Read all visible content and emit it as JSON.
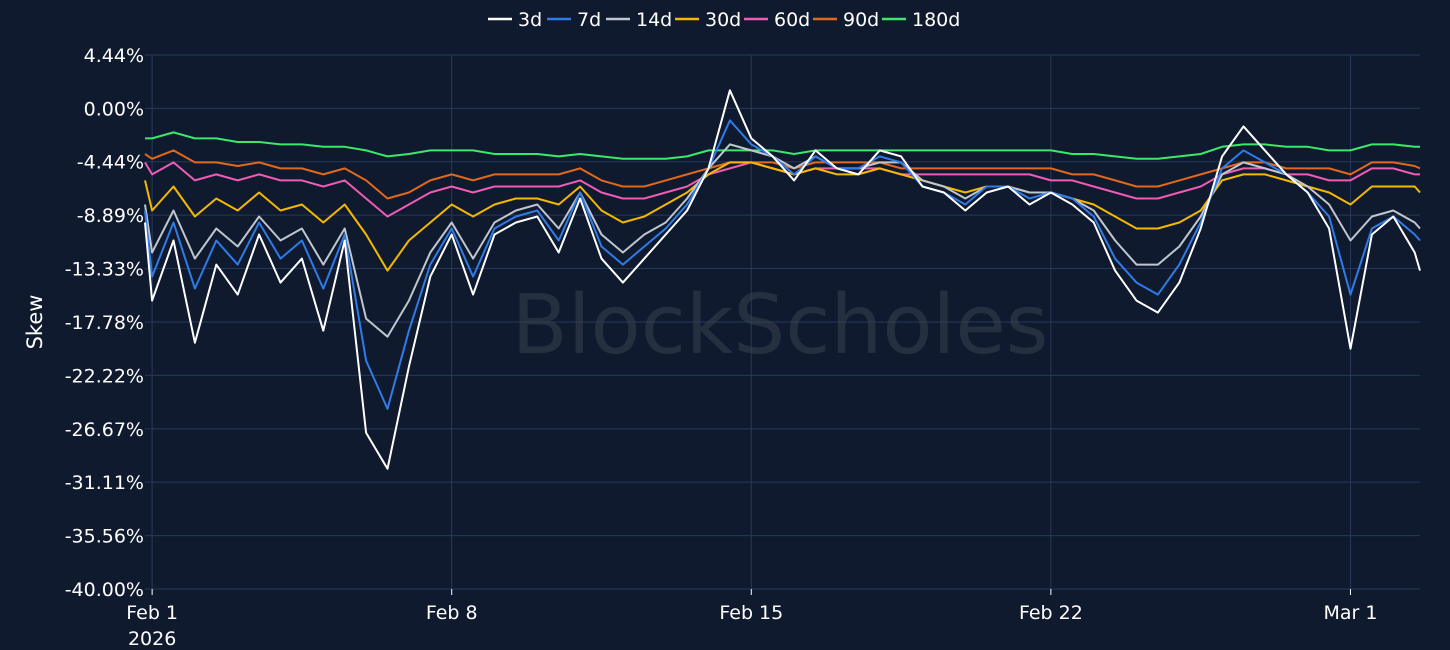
{
  "watermark": "BlockScholes",
  "chart_data": {
    "type": "line",
    "ylabel": "Skew",
    "xlabel": "",
    "ylim": [
      -40.0,
      4.44
    ],
    "yticks": [
      "4.44%",
      "0.00%",
      "-4.44%",
      "-8.89%",
      "-13.33%",
      "-17.78%",
      "-22.22%",
      "-26.67%",
      "-31.11%",
      "-35.56%",
      "-40.00%"
    ],
    "ytick_values": [
      4.44,
      0.0,
      -4.44,
      -8.89,
      -13.33,
      -17.78,
      -22.22,
      -26.67,
      -31.11,
      -35.56,
      -40.0
    ],
    "xticks": [
      {
        "date": "2026-02-01",
        "label": "Feb 1",
        "sublabel": "2026"
      },
      {
        "date": "2026-02-08",
        "label": "Feb 8",
        "sublabel": ""
      },
      {
        "date": "2026-02-15",
        "label": "Feb 15",
        "sublabel": ""
      },
      {
        "date": "2026-02-22",
        "label": "Feb 22",
        "sublabel": ""
      },
      {
        "date": "2026-03-01",
        "label": "Mar 1",
        "sublabel": ""
      }
    ],
    "xlim": [
      "2026-01-31T20:00",
      "2026-03-02T15:00"
    ],
    "grid": true,
    "legend_position": "top",
    "x": [
      "2026-01-31T20:00",
      "2026-02-01T00:00",
      "2026-02-01T12:00",
      "2026-02-02T00:00",
      "2026-02-02T12:00",
      "2026-02-03T00:00",
      "2026-02-03T12:00",
      "2026-02-04T00:00",
      "2026-02-04T12:00",
      "2026-02-05T00:00",
      "2026-02-05T12:00",
      "2026-02-06T00:00",
      "2026-02-06T12:00",
      "2026-02-07T00:00",
      "2026-02-07T12:00",
      "2026-02-08T00:00",
      "2026-02-08T12:00",
      "2026-02-09T00:00",
      "2026-02-09T12:00",
      "2026-02-10T00:00",
      "2026-02-10T12:00",
      "2026-02-11T00:00",
      "2026-02-11T12:00",
      "2026-02-12T00:00",
      "2026-02-12T12:00",
      "2026-02-13T00:00",
      "2026-02-13T12:00",
      "2026-02-14T00:00",
      "2026-02-14T12:00",
      "2026-02-15T00:00",
      "2026-02-15T12:00",
      "2026-02-16T00:00",
      "2026-02-16T12:00",
      "2026-02-17T00:00",
      "2026-02-17T12:00",
      "2026-02-18T00:00",
      "2026-02-18T12:00",
      "2026-02-19T00:00",
      "2026-02-19T12:00",
      "2026-02-20T00:00",
      "2026-02-20T12:00",
      "2026-02-21T00:00",
      "2026-02-21T12:00",
      "2026-02-22T00:00",
      "2026-02-22T12:00",
      "2026-02-23T00:00",
      "2026-02-23T12:00",
      "2026-02-24T00:00",
      "2026-02-24T12:00",
      "2026-02-25T00:00",
      "2026-02-25T12:00",
      "2026-02-26T00:00",
      "2026-02-26T12:00",
      "2026-02-27T00:00",
      "2026-02-27T12:00",
      "2026-02-28T00:00",
      "2026-02-28T12:00",
      "2026-03-01T00:00",
      "2026-03-01T12:00",
      "2026-03-02T00:00",
      "2026-03-02T12:00",
      "2026-03-02T15:00"
    ],
    "series": [
      {
        "name": "3d",
        "color": "#ffffff",
        "values": [
          -9.5,
          -16.0,
          -11.0,
          -19.5,
          -13.0,
          -15.5,
          -10.5,
          -14.5,
          -12.5,
          -18.5,
          -11.0,
          -27.0,
          -30.0,
          -21.5,
          -14.0,
          -10.5,
          -15.5,
          -10.5,
          -9.5,
          -9.0,
          -12.0,
          -7.5,
          -12.5,
          -14.5,
          -12.5,
          -10.5,
          -8.5,
          -5.0,
          1.5,
          -2.5,
          -4.0,
          -6.0,
          -3.5,
          -5.0,
          -5.5,
          -3.5,
          -4.0,
          -6.5,
          -7.0,
          -8.5,
          -7.0,
          -6.5,
          -8.0,
          -7.0,
          -8.0,
          -9.5,
          -13.5,
          -16.0,
          -17.0,
          -14.5,
          -10.0,
          -4.0,
          -1.5,
          -3.5,
          -5.5,
          -7.0,
          -10.0,
          -20.0,
          -10.5,
          -9.0,
          -12.0,
          -13.5
        ]
      },
      {
        "name": "7d",
        "color": "#2f7be8",
        "values": [
          -8.5,
          -14.0,
          -9.5,
          -15.0,
          -11.0,
          -13.0,
          -9.5,
          -12.5,
          -11.0,
          -15.0,
          -10.5,
          -21.0,
          -25.0,
          -18.5,
          -13.0,
          -10.0,
          -14.0,
          -10.0,
          -9.0,
          -8.5,
          -11.0,
          -7.0,
          -11.5,
          -13.0,
          -11.5,
          -10.0,
          -8.0,
          -5.0,
          -1.0,
          -3.0,
          -4.0,
          -5.5,
          -4.0,
          -5.0,
          -5.0,
          -4.0,
          -4.5,
          -6.5,
          -7.0,
          -8.0,
          -6.5,
          -6.5,
          -7.5,
          -7.0,
          -7.5,
          -9.0,
          -12.5,
          -14.5,
          -15.5,
          -13.0,
          -9.5,
          -5.0,
          -3.5,
          -4.5,
          -5.5,
          -7.0,
          -9.0,
          -15.5,
          -10.0,
          -9.0,
          -10.5,
          -11.0
        ]
      },
      {
        "name": "14d",
        "color": "#c0c6d0",
        "values": [
          -8.0,
          -12.0,
          -8.5,
          -12.5,
          -10.0,
          -11.5,
          -9.0,
          -11.0,
          -10.0,
          -13.0,
          -10.0,
          -17.5,
          -19.0,
          -16.0,
          -12.0,
          -9.5,
          -12.5,
          -9.5,
          -8.5,
          -8.0,
          -10.0,
          -7.0,
          -10.5,
          -12.0,
          -10.5,
          -9.5,
          -7.5,
          -5.0,
          -3.0,
          -3.5,
          -4.0,
          -5.0,
          -4.0,
          -5.0,
          -5.0,
          -4.5,
          -4.5,
          -6.0,
          -6.5,
          -7.5,
          -6.5,
          -6.5,
          -7.0,
          -7.0,
          -7.5,
          -8.5,
          -11.0,
          -13.0,
          -13.0,
          -11.5,
          -9.0,
          -5.5,
          -4.5,
          -5.0,
          -5.5,
          -6.5,
          -8.0,
          -11.0,
          -9.0,
          -8.5,
          -9.5,
          -10.0
        ]
      },
      {
        "name": "30d",
        "color": "#f5b800",
        "values": [
          -6.0,
          -8.5,
          -6.5,
          -9.0,
          -7.5,
          -8.5,
          -7.0,
          -8.5,
          -8.0,
          -9.5,
          -8.0,
          -10.5,
          -13.5,
          -11.0,
          -9.5,
          -8.0,
          -9.0,
          -8.0,
          -7.5,
          -7.5,
          -8.0,
          -6.5,
          -8.5,
          -9.5,
          -9.0,
          -8.0,
          -7.0,
          -5.5,
          -4.5,
          -4.5,
          -5.0,
          -5.5,
          -5.0,
          -5.5,
          -5.5,
          -5.0,
          -5.5,
          -6.0,
          -6.5,
          -7.0,
          -6.5,
          -6.5,
          -7.0,
          -7.0,
          -7.5,
          -8.0,
          -9.0,
          -10.0,
          -10.0,
          -9.5,
          -8.5,
          -6.0,
          -5.5,
          -5.5,
          -6.0,
          -6.5,
          -7.0,
          -8.0,
          -6.5,
          -6.5,
          -6.5,
          -7.0
        ]
      },
      {
        "name": "60d",
        "color": "#f05bb5",
        "values": [
          -4.5,
          -5.5,
          -4.5,
          -6.0,
          -5.5,
          -6.0,
          -5.5,
          -6.0,
          -6.0,
          -6.5,
          -6.0,
          -7.5,
          -9.0,
          -8.0,
          -7.0,
          -6.5,
          -7.0,
          -6.5,
          -6.5,
          -6.5,
          -6.5,
          -6.0,
          -7.0,
          -7.5,
          -7.5,
          -7.0,
          -6.5,
          -5.5,
          -5.0,
          -4.5,
          -5.0,
          -5.5,
          -5.0,
          -5.0,
          -5.0,
          -5.0,
          -5.5,
          -5.5,
          -5.5,
          -5.5,
          -5.5,
          -5.5,
          -5.5,
          -6.0,
          -6.0,
          -6.5,
          -7.0,
          -7.5,
          -7.5,
          -7.0,
          -6.5,
          -5.5,
          -5.0,
          -5.0,
          -5.5,
          -5.5,
          -6.0,
          -6.0,
          -5.0,
          -5.0,
          -5.5,
          -5.5
        ]
      },
      {
        "name": "90d",
        "color": "#e2681b",
        "values": [
          -3.8,
          -4.2,
          -3.5,
          -4.5,
          -4.5,
          -4.8,
          -4.5,
          -5.0,
          -5.0,
          -5.5,
          -5.0,
          -6.0,
          -7.5,
          -7.0,
          -6.0,
          -5.5,
          -6.0,
          -5.5,
          -5.5,
          -5.5,
          -5.5,
          -5.0,
          -6.0,
          -6.5,
          -6.5,
          -6.0,
          -5.5,
          -5.0,
          -4.5,
          -4.5,
          -4.5,
          -5.0,
          -4.5,
          -4.5,
          -4.5,
          -4.5,
          -5.0,
          -5.0,
          -5.0,
          -5.0,
          -5.0,
          -5.0,
          -5.0,
          -5.0,
          -5.5,
          -5.5,
          -6.0,
          -6.5,
          -6.5,
          -6.0,
          -5.5,
          -5.0,
          -4.5,
          -4.5,
          -5.0,
          -5.0,
          -5.0,
          -5.5,
          -4.5,
          -4.5,
          -4.8,
          -5.0
        ]
      },
      {
        "name": "180d",
        "color": "#3be869",
        "values": [
          -2.5,
          -2.5,
          -2.0,
          -2.5,
          -2.5,
          -2.8,
          -2.8,
          -3.0,
          -3.0,
          -3.2,
          -3.2,
          -3.5,
          -4.0,
          -3.8,
          -3.5,
          -3.5,
          -3.5,
          -3.8,
          -3.8,
          -3.8,
          -4.0,
          -3.8,
          -4.0,
          -4.2,
          -4.2,
          -4.2,
          -4.0,
          -3.5,
          -3.5,
          -3.5,
          -3.5,
          -3.8,
          -3.5,
          -3.5,
          -3.5,
          -3.5,
          -3.5,
          -3.5,
          -3.5,
          -3.5,
          -3.5,
          -3.5,
          -3.5,
          -3.5,
          -3.8,
          -3.8,
          -4.0,
          -4.2,
          -4.2,
          -4.0,
          -3.8,
          -3.2,
          -3.0,
          -3.0,
          -3.2,
          -3.2,
          -3.5,
          -3.5,
          -3.0,
          -3.0,
          -3.2,
          -3.2
        ]
      }
    ]
  }
}
